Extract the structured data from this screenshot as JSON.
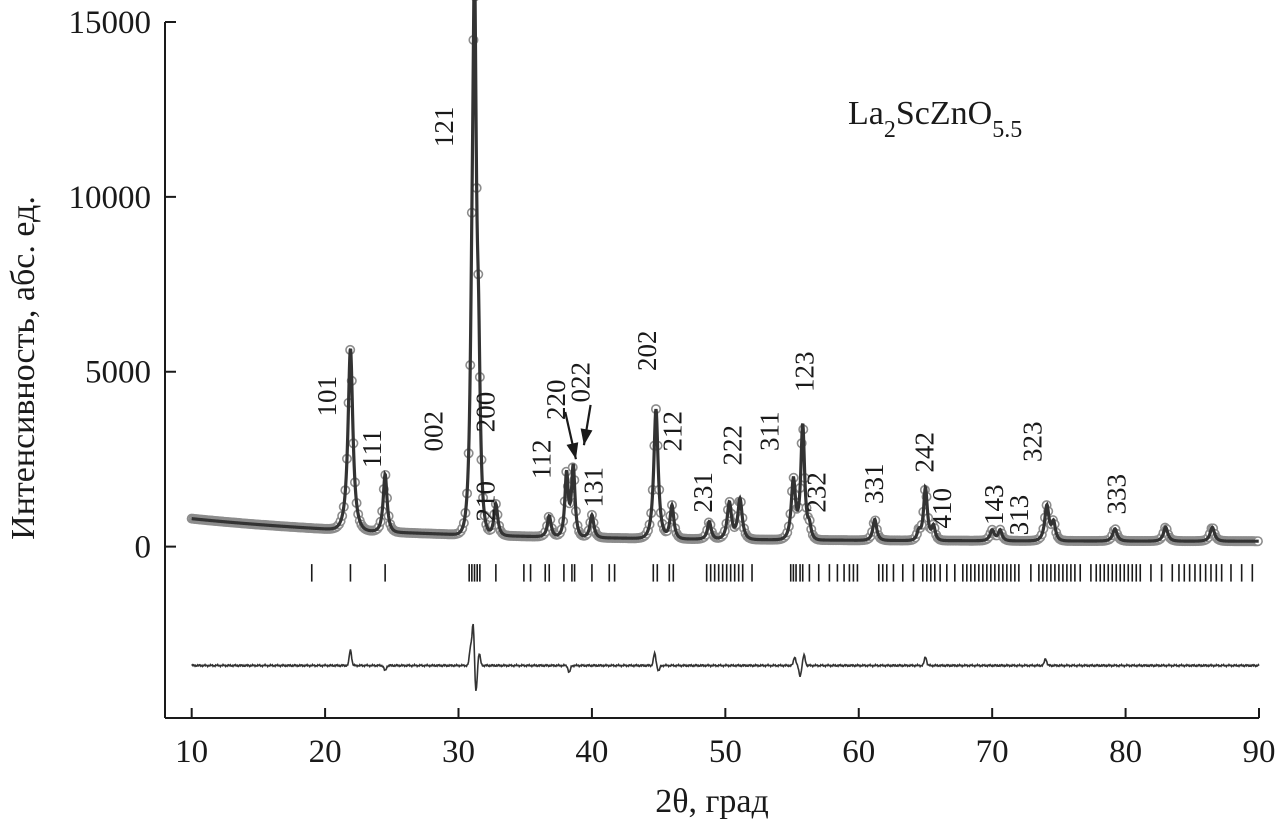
{
  "colors": {
    "axis": "#1a1a1a",
    "calc_line": "#333333",
    "obs_marker_stroke": "#8c8c8c",
    "obs_marker_fill": "#ffffff",
    "bragg_tick": "#1a1a1a",
    "difference": "#333333"
  },
  "chart_data": {
    "type": "scatter",
    "title": "La₂ScZnO₅.₅",
    "formula": {
      "base": "La",
      "sub1": "2",
      "mid": "ScZnO",
      "sub2": "5.5"
    },
    "xlabel": "2θ, град",
    "ylabel": "Интенсивность, абс. ед.",
    "xlim": [
      8,
      90
    ],
    "ylim": [
      -4900,
      15000
    ],
    "x_ticks": [
      10,
      20,
      30,
      40,
      50,
      60,
      70,
      80,
      90
    ],
    "y_ticks": [
      0,
      5000,
      10000,
      15000
    ],
    "grid": false,
    "legend": "none",
    "background": {
      "start": 800,
      "decay": 0.06,
      "floor": 150
    },
    "peaks": [
      {
        "x": 21.9,
        "y": 5200,
        "width": 0.28
      },
      {
        "x": 24.5,
        "y": 1650,
        "width": 0.22
      },
      {
        "x": 31.0,
        "y": 3200,
        "width": 0.2
      },
      {
        "x": 31.2,
        "y": 14400,
        "width": 0.22
      },
      {
        "x": 31.5,
        "y": 3800,
        "width": 0.2
      },
      {
        "x": 32.8,
        "y": 900,
        "width": 0.22
      },
      {
        "x": 36.8,
        "y": 600,
        "width": 0.22
      },
      {
        "x": 38.1,
        "y": 1800,
        "width": 0.2
      },
      {
        "x": 38.6,
        "y": 2000,
        "width": 0.2
      },
      {
        "x": 40.0,
        "y": 650,
        "width": 0.22
      },
      {
        "x": 44.8,
        "y": 3700,
        "width": 0.25
      },
      {
        "x": 46.0,
        "y": 950,
        "width": 0.22
      },
      {
        "x": 48.8,
        "y": 500,
        "width": 0.22
      },
      {
        "x": 50.3,
        "y": 1050,
        "width": 0.25
      },
      {
        "x": 51.1,
        "y": 1150,
        "width": 0.25
      },
      {
        "x": 55.1,
        "y": 1700,
        "width": 0.25
      },
      {
        "x": 55.8,
        "y": 3250,
        "width": 0.22
      },
      {
        "x": 56.3,
        "y": 350,
        "width": 0.2
      },
      {
        "x": 61.2,
        "y": 600,
        "width": 0.22
      },
      {
        "x": 64.5,
        "y": 250,
        "width": 0.2
      },
      {
        "x": 65.0,
        "y": 1500,
        "width": 0.22
      },
      {
        "x": 65.6,
        "y": 400,
        "width": 0.2
      },
      {
        "x": 70.0,
        "y": 300,
        "width": 0.25
      },
      {
        "x": 70.6,
        "y": 300,
        "width": 0.22
      },
      {
        "x": 74.1,
        "y": 1000,
        "width": 0.25
      },
      {
        "x": 74.6,
        "y": 500,
        "width": 0.22
      },
      {
        "x": 79.2,
        "y": 350,
        "width": 0.25
      },
      {
        "x": 83.0,
        "y": 400,
        "width": 0.25
      },
      {
        "x": 86.5,
        "y": 400,
        "width": 0.25
      }
    ],
    "obs_step": 0.12,
    "peak_labels": [
      {
        "text": "101",
        "x": 20.8,
        "y": 4300,
        "rotate": true
      },
      {
        "text": "111",
        "x": 24.2,
        "y": 2800,
        "rotate": true
      },
      {
        "text": "002",
        "x": 28.8,
        "y": 3300,
        "rotate": true
      },
      {
        "text": "121",
        "x": 29.6,
        "y": 12000,
        "rotate": true
      },
      {
        "text": "200",
        "x": 32.7,
        "y": 3850,
        "rotate": true
      },
      {
        "text": "210",
        "x": 32.7,
        "y": 1300,
        "rotate": true
      },
      {
        "text": "112",
        "x": 36.9,
        "y": 2500,
        "rotate": true
      },
      {
        "text": "220",
        "x": 38.0,
        "y": 4200,
        "rotate": true
      },
      {
        "text": "022",
        "x": 39.8,
        "y": 4700,
        "rotate": true
      },
      {
        "text": "131",
        "x": 40.8,
        "y": 1700,
        "rotate": true
      },
      {
        "text": "202",
        "x": 44.8,
        "y": 5600,
        "rotate": true
      },
      {
        "text": "212",
        "x": 46.7,
        "y": 3300,
        "rotate": true
      },
      {
        "text": "231",
        "x": 49.0,
        "y": 1550,
        "rotate": true
      },
      {
        "text": "222",
        "x": 51.2,
        "y": 2900,
        "rotate": true
      },
      {
        "text": "311",
        "x": 54.0,
        "y": 3300,
        "rotate": true
      },
      {
        "text": "123",
        "x": 56.6,
        "y": 5000,
        "rotate": true
      },
      {
        "text": "232",
        "x": 57.5,
        "y": 1550,
        "rotate": true
      },
      {
        "text": "331",
        "x": 61.8,
        "y": 1800,
        "rotate": true
      },
      {
        "text": "242",
        "x": 65.6,
        "y": 2700,
        "rotate": true
      },
      {
        "text": "410",
        "x": 66.9,
        "y": 1100,
        "rotate": true
      },
      {
        "text": "143",
        "x": 70.8,
        "y": 1200,
        "rotate": true
      },
      {
        "text": "313",
        "x": 72.7,
        "y": 900,
        "rotate": true
      },
      {
        "text": "323",
        "x": 73.7,
        "y": 3000,
        "rotate": true
      },
      {
        "text": "333",
        "x": 80.0,
        "y": 1500,
        "rotate": true
      }
    ],
    "arrows": [
      {
        "from": [
          38.0,
          3850
        ],
        "to": [
          38.8,
          2500
        ]
      },
      {
        "from": [
          39.9,
          4050
        ],
        "to": [
          39.4,
          2900
        ]
      }
    ],
    "bragg_y": [
      -500,
      -1000
    ],
    "bragg_positions": [
      19.0,
      21.9,
      24.5,
      30.8,
      31.0,
      31.2,
      31.4,
      31.6,
      32.8,
      34.9,
      35.4,
      36.5,
      36.8,
      37.9,
      38.5,
      38.7,
      40.0,
      41.3,
      41.7,
      44.6,
      44.9,
      45.8,
      46.1,
      48.6,
      48.9,
      49.2,
      49.5,
      49.8,
      50.1,
      50.4,
      50.7,
      51.0,
      51.3,
      52.0,
      54.9,
      55.1,
      55.3,
      55.6,
      55.8,
      56.3,
      57.0,
      57.8,
      58.4,
      58.9,
      59.3,
      59.6,
      59.9,
      61.5,
      61.8,
      62.1,
      62.6,
      63.3,
      64.1,
      64.8,
      65.1,
      65.4,
      65.7,
      66.1,
      66.6,
      67.2,
      67.8,
      68.1,
      68.4,
      68.7,
      69.0,
      69.3,
      69.6,
      69.9,
      70.2,
      70.5,
      70.8,
      71.1,
      71.4,
      71.7,
      72.0,
      72.9,
      73.5,
      73.8,
      74.1,
      74.4,
      74.7,
      75.0,
      75.3,
      75.6,
      75.9,
      76.2,
      76.6,
      77.4,
      77.8,
      78.1,
      78.4,
      78.7,
      79.0,
      79.3,
      79.6,
      79.9,
      80.2,
      80.5,
      80.8,
      81.1,
      81.9,
      82.7,
      83.5,
      84.0,
      84.4,
      84.8,
      85.2,
      85.6,
      86.0,
      86.4,
      86.8,
      87.2,
      87.9,
      88.7,
      89.5
    ],
    "difference": {
      "baseline": -3400,
      "features": [
        {
          "x": 21.9,
          "amp": 450
        },
        {
          "x": 24.5,
          "amp": -150
        },
        {
          "x": 30.9,
          "amp": 500
        },
        {
          "x": 31.1,
          "amp": 1200
        },
        {
          "x": 31.3,
          "amp": -800
        },
        {
          "x": 31.55,
          "amp": 350
        },
        {
          "x": 38.3,
          "amp": -200
        },
        {
          "x": 44.7,
          "amp": 350
        },
        {
          "x": 45.0,
          "amp": -150
        },
        {
          "x": 55.2,
          "amp": 250
        },
        {
          "x": 55.6,
          "amp": -300
        },
        {
          "x": 55.9,
          "amp": 300
        },
        {
          "x": 65.0,
          "amp": 250
        },
        {
          "x": 74.0,
          "amp": 200
        }
      ]
    }
  }
}
